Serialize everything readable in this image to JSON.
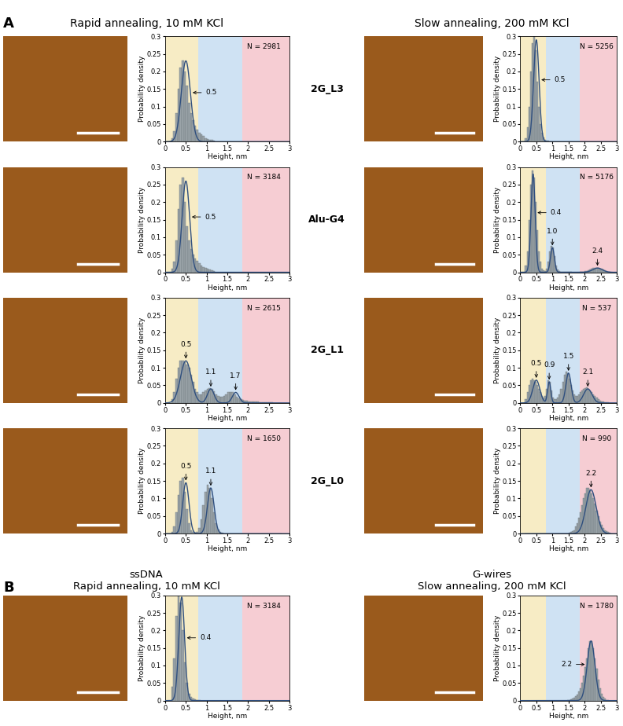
{
  "panels": [
    {
      "label": "A",
      "column_titles": [
        "Rapid annealing, 10 mM KCl",
        "Slow annealing, 200 mM KCl"
      ],
      "rows": [
        "2G_L3",
        "Alu-G4",
        "2G_L1",
        "2G_L0"
      ]
    },
    {
      "label": "B",
      "column_titles": [
        "ssDNA\nRapid annealing, 10 mM KCl",
        "G-wires\nSlow annealing, 200 mM KCl"
      ]
    }
  ],
  "axes": {
    "xlabel": "Height, nm",
    "ylabel": "Probability density",
    "xlim": [
      0,
      3
    ],
    "xticks": [
      0,
      0.5,
      1,
      1.5,
      2,
      2.5,
      3
    ],
    "ylim": [
      0,
      0.3
    ],
    "yticks": [
      0,
      0.05,
      0.1,
      0.15,
      0.2,
      0.25,
      0.3
    ],
    "bands": [
      {
        "range": [
          0,
          0.8
        ],
        "color": "#f7ecc5"
      },
      {
        "range": [
          0.8,
          1.85
        ],
        "color": "#cfe2f3"
      },
      {
        "range": [
          1.85,
          3
        ],
        "color": "#f6cdd3"
      }
    ],
    "color": "#9aa3a8",
    "curve_color": "#2f4f7f"
  },
  "chart_data": [
    {
      "type": "histogram",
      "n_label": "N = 2981",
      "bins": [
        0.15,
        0.2,
        0.25,
        0.3,
        0.35,
        0.4,
        0.45,
        0.5,
        0.55,
        0.6,
        0.65,
        0.7,
        0.75,
        0.8,
        0.85,
        0.9,
        0.95,
        1,
        1.05,
        1.1,
        1.15,
        1.2
      ],
      "counts": [
        0.01,
        0.03,
        0.08,
        0.15,
        0.21,
        0.23,
        0.2,
        0.16,
        0.11,
        0.08,
        0.06,
        0.045,
        0.035,
        0.025,
        0.02,
        0.015,
        0.01,
        0.008,
        0.005,
        0.004,
        0.003
      ],
      "peaks": [
        {
          "center": 0.5,
          "height": 0.23,
          "sigma": 0.11
        }
      ]
    },
    {
      "type": "histogram",
      "n_label": "N = 5256",
      "bins": [
        0.15,
        0.2,
        0.25,
        0.3,
        0.35,
        0.4,
        0.45,
        0.5,
        0.55,
        0.6,
        0.65,
        0.7,
        0.75,
        0.8,
        0.85,
        0.9
      ],
      "counts": [
        0.01,
        0.04,
        0.1,
        0.2,
        0.28,
        0.3,
        0.26,
        0.17,
        0.1,
        0.05,
        0.025,
        0.012,
        0.006,
        0.003,
        0.002
      ],
      "peaks": [
        {
          "center": 0.5,
          "height": 0.29,
          "sigma": 0.085
        }
      ]
    },
    {
      "type": "histogram",
      "n_label": "N = 3184",
      "bins": [
        0.15,
        0.2,
        0.25,
        0.3,
        0.35,
        0.4,
        0.45,
        0.5,
        0.55,
        0.6,
        0.65,
        0.7,
        0.75,
        0.8,
        0.85,
        0.9,
        0.95,
        1,
        1.05,
        1.1,
        1.15,
        1.2
      ],
      "counts": [
        0.01,
        0.03,
        0.09,
        0.18,
        0.25,
        0.27,
        0.2,
        0.13,
        0.09,
        0.065,
        0.05,
        0.04,
        0.032,
        0.025,
        0.02,
        0.015,
        0.012,
        0.009,
        0.007,
        0.005,
        0.003
      ],
      "peaks": [
        {
          "center": 0.5,
          "height": 0.26,
          "sigma": 0.09
        }
      ]
    },
    {
      "type": "histogram",
      "n_label": "N = 5176",
      "bins": [
        0.15,
        0.2,
        0.25,
        0.3,
        0.35,
        0.4,
        0.45,
        0.5,
        0.55,
        0.6,
        0.65,
        0.7,
        0.75,
        0.8,
        0.85,
        0.9,
        0.95,
        1,
        1.05,
        1.1,
        1.15,
        1.2,
        1.25,
        1.3,
        1.35,
        1.4,
        1.45,
        1.5,
        1.55,
        1.6,
        1.65,
        1.7,
        1.75,
        1.8,
        1.85,
        1.9,
        1.95,
        2,
        2.05,
        2.1,
        2.15,
        2.2,
        2.25,
        2.3,
        2.35,
        2.4,
        2.45,
        2.5,
        2.55,
        2.6,
        2.65,
        2.7,
        2.75,
        2.8
      ],
      "counts": [
        0.02,
        0.06,
        0.15,
        0.25,
        0.29,
        0.27,
        0.2,
        0.12,
        0.06,
        0.03,
        0.01,
        0.005,
        0.004,
        0.01,
        0.03,
        0.06,
        0.075,
        0.07,
        0.045,
        0.02,
        0.008,
        0.003,
        0.002,
        0.001,
        0.001,
        0.001,
        0.001,
        0.001,
        0.001,
        0,
        0,
        0,
        0,
        0,
        0.001,
        0.001,
        0.002,
        0.003,
        0.004,
        0.006,
        0.008,
        0.01,
        0.012,
        0.013,
        0.012,
        0.012,
        0.011,
        0.009,
        0.007,
        0.005,
        0.003,
        0.002,
        0.001
      ],
      "peaks": [
        {
          "center": 0.4,
          "height": 0.28,
          "sigma": 0.065
        },
        {
          "center": 1.0,
          "height": 0.07,
          "sigma": 0.06
        },
        {
          "center": 2.4,
          "height": 0.012,
          "sigma": 0.15
        }
      ]
    },
    {
      "type": "histogram",
      "n_label": "N = 2615",
      "bins": [
        0.15,
        0.2,
        0.25,
        0.3,
        0.35,
        0.4,
        0.45,
        0.5,
        0.55,
        0.6,
        0.65,
        0.7,
        0.75,
        0.8,
        0.85,
        0.9,
        0.95,
        1,
        1.05,
        1.1,
        1.15,
        1.2,
        1.25,
        1.3,
        1.35,
        1.4,
        1.45,
        1.5,
        1.55,
        1.6,
        1.65,
        1.7,
        1.75,
        1.8,
        1.85,
        1.9,
        1.95,
        2,
        2.05,
        2.1,
        2.15,
        2.2,
        2.25,
        2.3,
        2.35,
        2.4,
        2.45,
        2.5,
        2.55,
        2.6,
        2.65,
        2.7,
        2.75,
        2.8
      ],
      "counts": [
        0.01,
        0.03,
        0.07,
        0.1,
        0.12,
        0.12,
        0.115,
        0.11,
        0.1,
        0.08,
        0.06,
        0.04,
        0.03,
        0.025,
        0.025,
        0.03,
        0.035,
        0.04,
        0.042,
        0.04,
        0.033,
        0.025,
        0.02,
        0.018,
        0.018,
        0.02,
        0.025,
        0.03,
        0.032,
        0.03,
        0.025,
        0.018,
        0.013,
        0.01,
        0.008,
        0.007,
        0.006,
        0.005,
        0.004,
        0.004,
        0.003,
        0.003,
        0.002,
        0.002,
        0.002,
        0.001,
        0.001,
        0.001,
        0.001,
        0,
        0,
        0,
        0
      ],
      "peaks": [
        {
          "center": 0.5,
          "height": 0.12,
          "sigma": 0.13
        },
        {
          "center": 1.1,
          "height": 0.04,
          "sigma": 0.08
        },
        {
          "center": 1.7,
          "height": 0.03,
          "sigma": 0.08
        }
      ]
    },
    {
      "type": "histogram",
      "n_label": "N = 537",
      "bins": [
        0.15,
        0.2,
        0.25,
        0.3,
        0.35,
        0.4,
        0.45,
        0.5,
        0.55,
        0.6,
        0.65,
        0.7,
        0.75,
        0.8,
        0.85,
        0.9,
        0.95,
        1,
        1.05,
        1.1,
        1.15,
        1.2,
        1.25,
        1.3,
        1.35,
        1.4,
        1.45,
        1.5,
        1.55,
        1.6,
        1.65,
        1.7,
        1.75,
        1.8,
        1.85,
        1.9,
        1.95,
        2,
        2.05,
        2.1,
        2.15,
        2.2,
        2.25,
        2.3,
        2.35,
        2.4,
        2.45,
        2.5,
        2.55,
        2.6,
        2.65,
        2.7,
        2.75,
        2.8
      ],
      "counts": [
        0.01,
        0.03,
        0.05,
        0.065,
        0.07,
        0.065,
        0.06,
        0.05,
        0.04,
        0.03,
        0.02,
        0.015,
        0.02,
        0.04,
        0.065,
        0.06,
        0.035,
        0.015,
        0.01,
        0.01,
        0.015,
        0.025,
        0.04,
        0.06,
        0.08,
        0.09,
        0.085,
        0.07,
        0.05,
        0.035,
        0.025,
        0.02,
        0.02,
        0.025,
        0.03,
        0.035,
        0.04,
        0.042,
        0.045,
        0.04,
        0.035,
        0.03,
        0.025,
        0.02,
        0.015,
        0.01,
        0.007,
        0.005,
        0.003,
        0.002,
        0.001,
        0.001,
        0
      ],
      "peaks": [
        {
          "center": 0.5,
          "height": 0.065,
          "sigma": 0.11
        },
        {
          "center": 0.9,
          "height": 0.06,
          "sigma": 0.05
        },
        {
          "center": 1.5,
          "height": 0.085,
          "sigma": 0.08
        },
        {
          "center": 2.1,
          "height": 0.04,
          "sigma": 0.13
        }
      ]
    },
    {
      "type": "histogram",
      "n_label": "N = 1650",
      "bins": [
        0.15,
        0.2,
        0.25,
        0.3,
        0.35,
        0.4,
        0.45,
        0.5,
        0.55,
        0.6,
        0.65,
        0.7,
        0.75,
        0.8,
        0.85,
        0.9,
        0.95,
        1,
        1.05,
        1.1,
        1.15,
        1.2,
        1.25,
        1.3,
        1.35,
        1.4,
        1.45,
        1.5,
        1.55,
        1.6,
        1.65,
        1.7,
        1.75,
        1.8,
        1.85,
        1.9,
        1.95,
        2,
        2.05,
        2.1,
        2.15,
        2.2,
        2.25,
        2.3,
        2.35,
        2.4,
        2.45,
        2.5,
        2.55,
        2.6,
        2.65,
        2.7,
        2.75,
        2.8
      ],
      "counts": [
        0.005,
        0.02,
        0.06,
        0.11,
        0.15,
        0.16,
        0.12,
        0.07,
        0.03,
        0.01,
        0.005,
        0.003,
        0.005,
        0.015,
        0.04,
        0.08,
        0.12,
        0.14,
        0.13,
        0.1,
        0.06,
        0.03,
        0.012,
        0.005,
        0.002,
        0.001,
        0,
        0,
        0,
        0,
        0,
        0,
        0,
        0,
        0,
        0,
        0,
        0,
        0,
        0,
        0,
        0,
        0,
        0,
        0,
        0,
        0,
        0,
        0,
        0,
        0,
        0,
        0
      ],
      "peaks": [
        {
          "center": 0.5,
          "height": 0.145,
          "sigma": 0.075
        },
        {
          "center": 1.1,
          "height": 0.13,
          "sigma": 0.08
        }
      ]
    },
    {
      "type": "histogram",
      "n_label": "N = 990",
      "bins": [
        0.15,
        0.2,
        0.25,
        0.3,
        0.35,
        0.4,
        0.45,
        0.5,
        0.55,
        0.6,
        0.65,
        0.7,
        0.75,
        0.8,
        0.85,
        0.9,
        0.95,
        1,
        1.05,
        1.1,
        1.15,
        1.2,
        1.25,
        1.3,
        1.35,
        1.4,
        1.45,
        1.5,
        1.55,
        1.6,
        1.65,
        1.7,
        1.75,
        1.8,
        1.85,
        1.9,
        1.95,
        2,
        2.05,
        2.1,
        2.15,
        2.2,
        2.25,
        2.3,
        2.35,
        2.4,
        2.45,
        2.5,
        2.55,
        2.6,
        2.65,
        2.7,
        2.75,
        2.8
      ],
      "counts": [
        0,
        0,
        0,
        0,
        0,
        0,
        0,
        0,
        0,
        0,
        0,
        0,
        0,
        0,
        0,
        0,
        0,
        0,
        0,
        0,
        0,
        0,
        0,
        0,
        0,
        0,
        0,
        0.002,
        0.004,
        0.006,
        0.01,
        0.02,
        0.03,
        0.045,
        0.06,
        0.08,
        0.1,
        0.115,
        0.13,
        0.13,
        0.125,
        0.115,
        0.1,
        0.085,
        0.065,
        0.05,
        0.035,
        0.025,
        0.015,
        0.01,
        0.006,
        0.004,
        0.002
      ],
      "peaks": [
        {
          "center": 2.2,
          "height": 0.125,
          "sigma": 0.16
        }
      ]
    },
    {
      "type": "histogram",
      "n_label": "N = 3184",
      "bins": [
        0.15,
        0.2,
        0.25,
        0.3,
        0.35,
        0.4,
        0.45,
        0.5,
        0.55,
        0.6,
        0.65,
        0.7,
        0.75,
        0.8,
        0.85,
        0.9
      ],
      "counts": [
        0.04,
        0.12,
        0.24,
        0.3,
        0.28,
        0.2,
        0.11,
        0.05,
        0.02,
        0.01,
        0.005,
        0.003,
        0.002,
        0.001,
        0
      ],
      "peaks": [
        {
          "center": 0.4,
          "height": 0.295,
          "sigma": 0.07
        }
      ]
    },
    {
      "type": "histogram",
      "n_label": "N = 1780",
      "bins": [
        0.15,
        0.2,
        0.25,
        0.3,
        0.35,
        0.4,
        0.45,
        0.5,
        0.55,
        0.6,
        0.65,
        0.7,
        0.75,
        0.8,
        0.85,
        0.9,
        0.95,
        1,
        1.05,
        1.1,
        1.15,
        1.2,
        1.25,
        1.3,
        1.35,
        1.4,
        1.45,
        1.5,
        1.55,
        1.6,
        1.65,
        1.7,
        1.75,
        1.8,
        1.85,
        1.9,
        1.95,
        2,
        2.05,
        2.1,
        2.15,
        2.2,
        2.25,
        2.3,
        2.35,
        2.4,
        2.45,
        2.5,
        2.55,
        2.6,
        2.65,
        2.7,
        2.75,
        2.8
      ],
      "counts": [
        0,
        0,
        0,
        0,
        0,
        0,
        0,
        0,
        0,
        0,
        0,
        0,
        0,
        0,
        0,
        0,
        0,
        0,
        0,
        0,
        0,
        0,
        0,
        0,
        0,
        0,
        0.001,
        0.002,
        0.003,
        0.005,
        0.008,
        0.012,
        0.018,
        0.025,
        0.035,
        0.05,
        0.07,
        0.095,
        0.12,
        0.15,
        0.17,
        0.17,
        0.15,
        0.12,
        0.09,
        0.06,
        0.035,
        0.02,
        0.01,
        0.005,
        0.002,
        0.001,
        0
      ],
      "peaks": [
        {
          "center": 2.2,
          "height": 0.17,
          "sigma": 0.12
        }
      ]
    }
  ]
}
